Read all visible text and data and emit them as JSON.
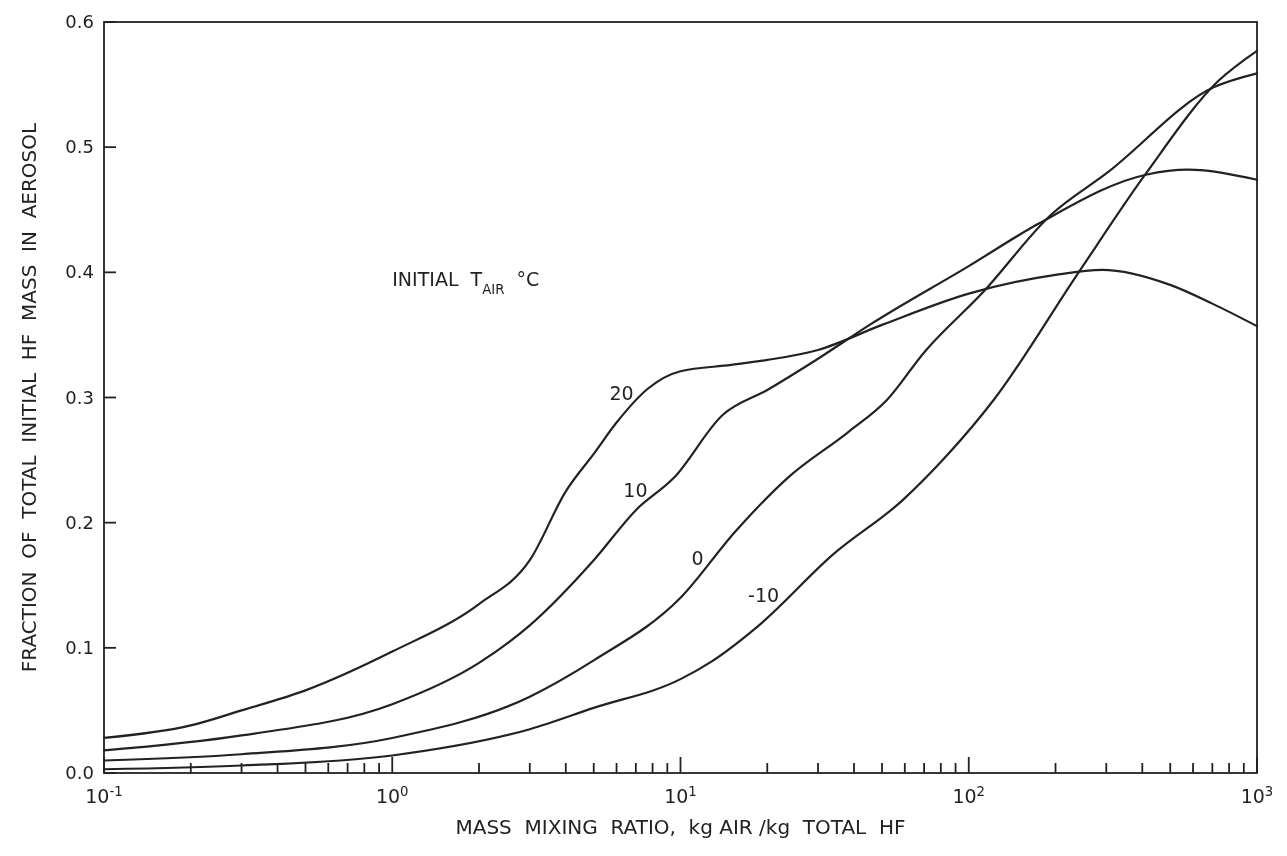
{
  "chart_data": {
    "type": "line",
    "xlabel": "MASS  MIXING  RATIO,  kg AIR /kg  TOTAL  HF",
    "ylabel": "FRACTION  OF  TOTAL  INITIAL  HF  MASS  IN  AEROSOL",
    "legend_title": "INITIAL  T$_{AIR}$  °C",
    "log": "x",
    "grid": false,
    "marker": "none",
    "line_style": "solid",
    "xlim": [
      0.1,
      1000
    ],
    "ylim": [
      0,
      0.6
    ],
    "xticks": [
      {
        "value": 0.1,
        "label": "10$^{-1}$"
      },
      {
        "value": 0.2,
        "label": null
      },
      {
        "value": 0.3,
        "label": null
      },
      {
        "value": 0.4,
        "label": null
      },
      {
        "value": 0.5,
        "label": null
      },
      {
        "value": 0.6,
        "label": null
      },
      {
        "value": 0.7,
        "label": null
      },
      {
        "value": 0.8,
        "label": null
      },
      {
        "value": 0.9,
        "label": null
      },
      {
        "value": 1,
        "label": "10$^{0}$"
      },
      {
        "value": 2,
        "label": null
      },
      {
        "value": 3,
        "label": null
      },
      {
        "value": 4,
        "label": null
      },
      {
        "value": 5,
        "label": null
      },
      {
        "value": 6,
        "label": null
      },
      {
        "value": 7,
        "label": null
      },
      {
        "value": 8,
        "label": null
      },
      {
        "value": 9,
        "label": null
      },
      {
        "value": 10,
        "label": "10$^{1}$"
      },
      {
        "value": 20,
        "label": null
      },
      {
        "value": 30,
        "label": null
      },
      {
        "value": 40,
        "label": null
      },
      {
        "value": 50,
        "label": null
      },
      {
        "value": 60,
        "label": null
      },
      {
        "value": 70,
        "label": null
      },
      {
        "value": 80,
        "label": null
      },
      {
        "value": 90,
        "label": null
      },
      {
        "value": 100,
        "label": "10$^{2}$"
      },
      {
        "value": 200,
        "label": null
      },
      {
        "value": 300,
        "label": null
      },
      {
        "value": 400,
        "label": null
      },
      {
        "value": 500,
        "label": null
      },
      {
        "value": 600,
        "label": null
      },
      {
        "value": 700,
        "label": null
      },
      {
        "value": 800,
        "label": null
      },
      {
        "value": 900,
        "label": null
      },
      {
        "value": 1000,
        "label": "10$^{3}$"
      }
    ],
    "yticks": [
      {
        "value": 0,
        "label": "0.0"
      },
      0.1,
      0.2,
      0.3,
      0.4,
      0.5,
      0.6
    ],
    "series": [
      {
        "name": "20",
        "color": "#222222",
        "x": [
          0.1,
          0.2,
          0.3,
          0.5,
          1,
          2,
          3,
          4,
          5,
          6,
          7.7,
          10,
          15,
          20,
          30,
          50,
          100,
          200,
          290,
          500,
          700,
          1000
        ],
        "values": [
          0.028,
          0.038,
          0.05,
          0.066,
          0.097,
          0.135,
          0.17,
          0.225,
          0.255,
          0.28,
          0.307,
          0.321,
          0.326,
          0.33,
          0.338,
          0.358,
          0.383,
          0.398,
          0.402,
          0.39,
          0.375,
          0.357
        ]
      },
      {
        "name": "10",
        "color": "#222222",
        "x": [
          0.1,
          0.3,
          1,
          2,
          3,
          5,
          7,
          9.5,
          14,
          20,
          30,
          46,
          100,
          175,
          412,
          575,
          1000
        ],
        "values": [
          0.018,
          0.03,
          0.055,
          0.088,
          0.118,
          0.17,
          0.21,
          0.236,
          0.286,
          0.306,
          0.331,
          0.359,
          0.405,
          0.439,
          0.478,
          0.482,
          0.474
        ]
      },
      {
        "name": "0",
        "color": "#222222",
        "x": [
          0.1,
          0.3,
          1,
          3,
          5,
          10,
          15.5,
          23.6,
          38,
          52,
          70,
          112,
          193,
          300,
          710,
          1000
        ],
        "values": [
          0.01,
          0.015,
          0.028,
          0.061,
          0.09,
          0.14,
          0.193,
          0.236,
          0.272,
          0.298,
          0.336,
          0.384,
          0.446,
          0.479,
          0.548,
          0.559
        ]
      },
      {
        "name": "-10",
        "color": "#222222",
        "x": [
          0.1,
          0.3,
          1,
          3,
          5,
          10,
          12.8,
          18.5,
          34,
          59,
          85,
          122,
          239,
          412,
          735,
          1000
        ],
        "values": [
          0.003,
          0.006,
          0.014,
          0.035,
          0.052,
          0.075,
          0.089,
          0.117,
          0.175,
          0.218,
          0.255,
          0.298,
          0.399,
          0.479,
          0.553,
          0.577
        ]
      }
    ]
  }
}
